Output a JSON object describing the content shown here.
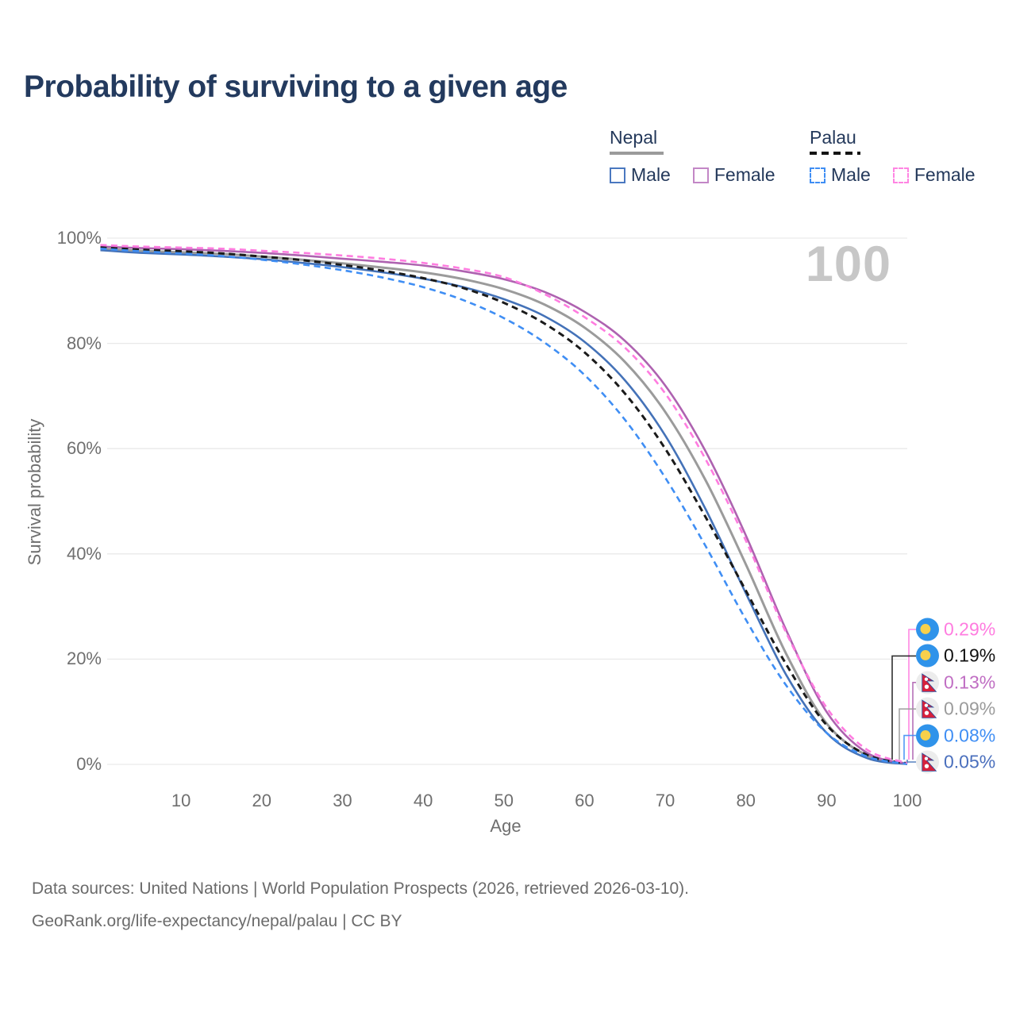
{
  "title": "Probability of surviving to a given age",
  "watermark": "100",
  "legend": {
    "groups": [
      {
        "name": "Nepal",
        "line_style": "solid",
        "line_color": "#9b9b9b",
        "items": [
          {
            "label": "Male",
            "color": "#4a78c0",
            "style": "solid"
          },
          {
            "label": "Female",
            "color": "#c387c6",
            "style": "solid"
          }
        ]
      },
      {
        "name": "Palau",
        "line_style": "dashed",
        "line_color": "#141414",
        "items": [
          {
            "label": "Male",
            "color": "#3f8ef4",
            "style": "dashed"
          },
          {
            "label": "Female",
            "color": "#ff85e3",
            "style": "dashed"
          }
        ]
      }
    ]
  },
  "chart_data": {
    "type": "line",
    "title": "Probability of surviving to a given age",
    "xlabel": "Age",
    "ylabel": "Survival probability",
    "xlim": [
      0,
      100
    ],
    "ylim": [
      0,
      100
    ],
    "grid": true,
    "legend_position": "top-right",
    "x_ticks": [
      10,
      20,
      30,
      40,
      50,
      60,
      70,
      80,
      90,
      100
    ],
    "y_ticks": [
      0,
      20,
      40,
      60,
      80,
      100
    ],
    "y_tick_labels": [
      "0%",
      "20%",
      "40%",
      "60%",
      "80%",
      "100%"
    ],
    "x": [
      0,
      5,
      10,
      15,
      20,
      25,
      30,
      35,
      40,
      45,
      50,
      55,
      60,
      65,
      70,
      75,
      80,
      85,
      90,
      95,
      100
    ],
    "series": [
      {
        "id": "palau_female",
        "name": "Palau Female",
        "country": "Palau",
        "sex": "Female",
        "color": "#ff7ce0",
        "label_color": "#ff7ce0",
        "dash": true,
        "z": 6,
        "flag": "palau",
        "end_label": "0.29%",
        "values": [
          98.7,
          98.4,
          98.2,
          98.0,
          97.6,
          97.2,
          96.7,
          96.1,
          95.3,
          94.2,
          92.6,
          89.4,
          85.0,
          79.2,
          70.5,
          58.0,
          42.5,
          25.0,
          10.8,
          2.8,
          0.29
        ]
      },
      {
        "id": "palau_all",
        "name": "Palau",
        "country": "Palau",
        "sex": "Both",
        "color": "#1a1a1a",
        "label_color": "#111111",
        "dash": true,
        "z": 4,
        "flag": "palau",
        "end_label": "0.19%",
        "values": [
          98.2,
          97.8,
          97.5,
          97.1,
          96.5,
          95.8,
          94.9,
          93.8,
          92.4,
          90.5,
          87.7,
          83.8,
          78.3,
          70.5,
          60.0,
          47.0,
          33.0,
          19.0,
          7.5,
          1.8,
          0.19
        ]
      },
      {
        "id": "nepal_female",
        "name": "Nepal Female",
        "country": "Nepal",
        "sex": "Female",
        "color": "#ae62b0",
        "label_color": "#c06ec3",
        "dash": false,
        "z": 3,
        "flag": "nepal",
        "end_label": "0.13%",
        "values": [
          98.4,
          98.1,
          97.9,
          97.6,
          97.2,
          96.7,
          96.1,
          95.5,
          94.8,
          93.7,
          92.2,
          89.8,
          86.0,
          80.5,
          72.0,
          59.5,
          43.5,
          25.5,
          10.0,
          2.2,
          0.13
        ]
      },
      {
        "id": "nepal_all",
        "name": "Nepal",
        "country": "Nepal",
        "sex": "Both",
        "color": "#9b9b9b",
        "label_color": "#9b9b9b",
        "dash": false,
        "z": 1,
        "flag": "nepal",
        "end_label": "0.09%",
        "values": [
          98.0,
          97.6,
          97.3,
          97.0,
          96.5,
          95.9,
          95.2,
          94.4,
          93.5,
          92.2,
          90.3,
          87.4,
          83.0,
          76.5,
          67.0,
          54.0,
          38.0,
          21.0,
          7.8,
          1.7,
          0.09
        ]
      },
      {
        "id": "palau_male",
        "name": "Palau Male",
        "country": "Palau",
        "sex": "Male",
        "color": "#3f8ef4",
        "label_color": "#3f8ef4",
        "dash": true,
        "z": 5,
        "flag": "palau",
        "end_label": "0.08%",
        "values": [
          98.0,
          97.5,
          97.1,
          96.6,
          95.9,
          95.0,
          93.9,
          92.5,
          90.7,
          88.2,
          84.8,
          80.2,
          74.0,
          65.5,
          54.5,
          41.5,
          27.5,
          15.0,
          6.0,
          1.5,
          0.08
        ]
      },
      {
        "id": "nepal_male",
        "name": "Nepal Male",
        "country": "Nepal",
        "sex": "Male",
        "color": "#4472b8",
        "label_color": "#4a6fbd",
        "dash": false,
        "z": 2,
        "flag": "nepal",
        "end_label": "0.05%",
        "values": [
          97.7,
          97.2,
          96.9,
          96.5,
          96.0,
          95.3,
          94.5,
          93.5,
          92.3,
          90.7,
          88.4,
          85.2,
          80.3,
          73.0,
          62.5,
          48.5,
          32.5,
          17.0,
          6.0,
          1.2,
          0.05
        ]
      }
    ]
  },
  "colors": {
    "grid": "#e9e9e9",
    "axis_text": "#6f6f6f",
    "title_text": "#233a5e",
    "watermark": "#c7c7c7",
    "footer_text": "#6b6b6b"
  },
  "footer": {
    "line1": "Data sources: United Nations | World Population Prospects (2026, retrieved 2026-03-10).",
    "line2": "GeoRank.org/life-expectancy/nepal/palau | CC BY"
  }
}
